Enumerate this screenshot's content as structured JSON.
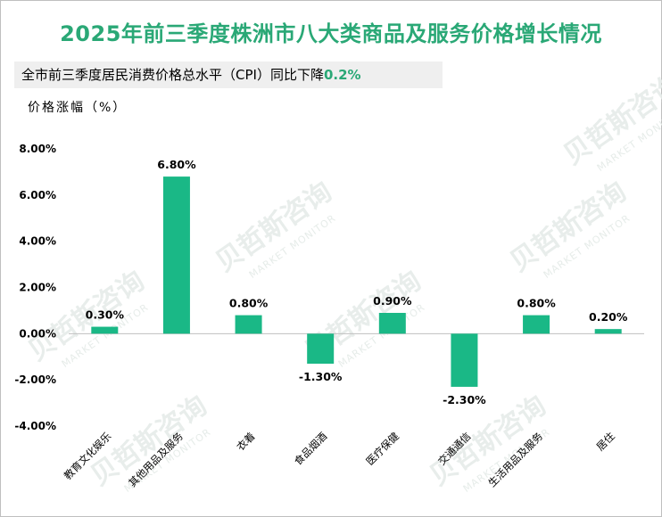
{
  "title": "2025年前三季度株洲市八大类商品及服务价格增长情况",
  "subtitle": {
    "prefix": "全市前三季度居民消费价格总水平（CPI）同比下降",
    "highlight": "0.2%"
  },
  "colors": {
    "title": "#2aa876",
    "bar": "#1ab886",
    "axis": "#bfbfbf",
    "subtitle_bg": "#efefef"
  },
  "watermark": {
    "text": "贝哲斯咨询",
    "sub": "MARKET MONITOR"
  },
  "chart_data": {
    "type": "bar",
    "ylabel": "价格涨幅（%）",
    "categories": [
      "教育文化娱乐",
      "其他用品及服务",
      "衣着",
      "食品烟酒",
      "医疗保健",
      "交通通信",
      "生活用品及服务",
      "居住"
    ],
    "values": [
      0.3,
      6.8,
      0.8,
      -1.3,
      0.9,
      -2.3,
      0.8,
      0.2
    ],
    "data_labels": [
      "0.30%",
      "6.80%",
      "0.80%",
      "-1.30%",
      "0.90%",
      "-2.30%",
      "0.80%",
      "0.20%"
    ],
    "yticks": [
      8,
      6,
      4,
      2,
      0,
      -2,
      -4
    ],
    "ytick_labels": [
      "8.00%",
      "6.00%",
      "4.00%",
      "2.00%",
      "0.00%",
      "-2.00%",
      "-4.00%"
    ],
    "ylim": [
      -4,
      8
    ],
    "grid": false,
    "legend": "none"
  }
}
